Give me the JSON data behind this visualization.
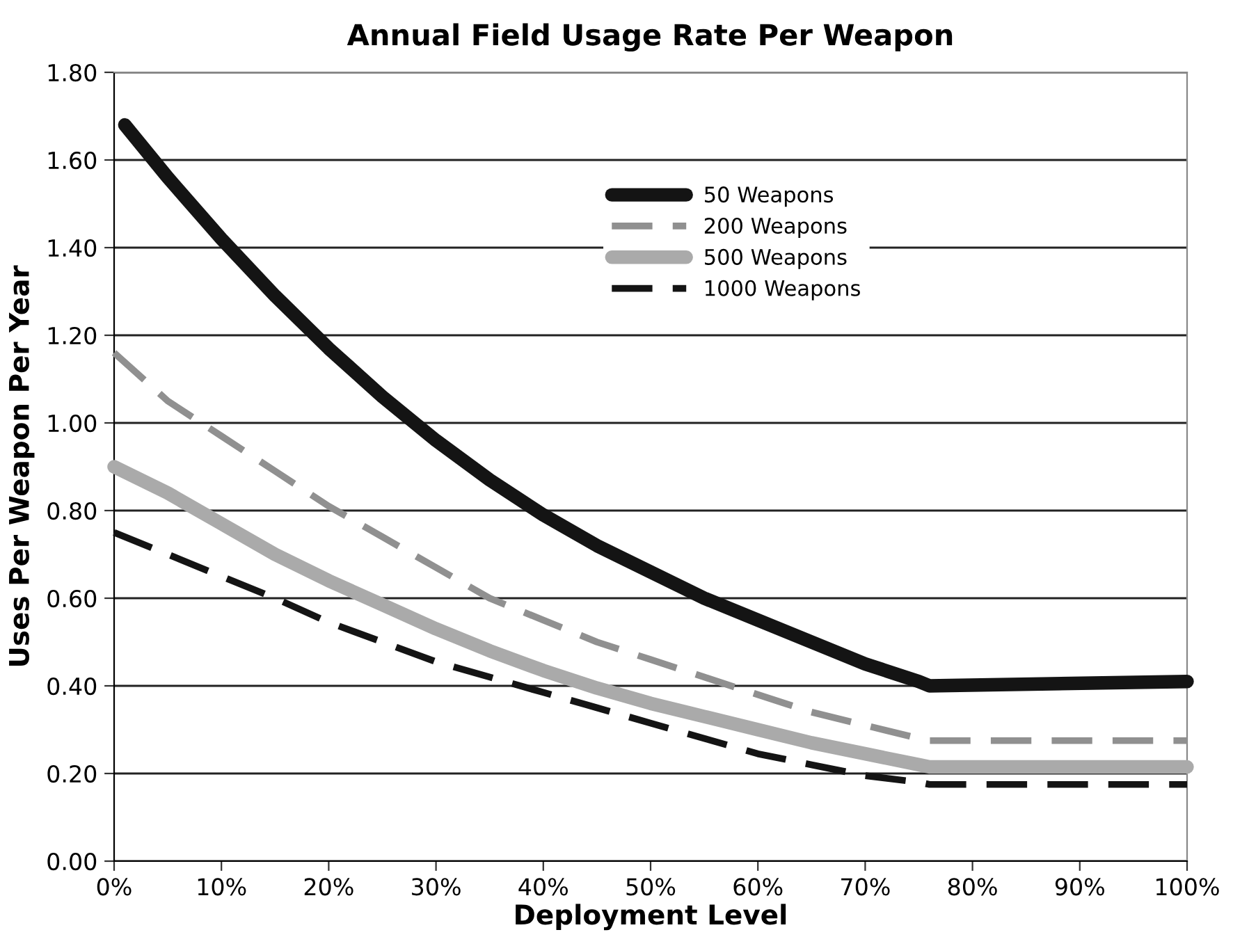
{
  "chart_data": {
    "type": "line",
    "title": "Annual Field Usage Rate Per Weapon",
    "xlabel": "Deployment Level",
    "ylabel": "Uses Per Weapon Per Year",
    "x": [
      1,
      5,
      10,
      15,
      20,
      25,
      30,
      35,
      40,
      45,
      50,
      55,
      60,
      65,
      70,
      75,
      76,
      100
    ],
    "xlim": [
      0,
      100
    ],
    "xticks": [
      {
        "value": 0,
        "label": "0%"
      },
      {
        "value": 10,
        "label": "10%"
      },
      {
        "value": 20,
        "label": "20%"
      },
      {
        "value": 30,
        "label": "30%"
      },
      {
        "value": 40,
        "label": "40%"
      },
      {
        "value": 50,
        "label": "50%"
      },
      {
        "value": 60,
        "label": "60%"
      },
      {
        "value": 70,
        "label": "70%"
      },
      {
        "value": 80,
        "label": "80%"
      },
      {
        "value": 90,
        "label": "90%"
      },
      {
        "value": 100,
        "label": "100%"
      }
    ],
    "ylim": [
      0,
      1.8
    ],
    "yticks": [
      {
        "value": 0,
        "label": "0.00"
      },
      {
        "value": 0.2,
        "label": "0.20"
      },
      {
        "value": 0.4,
        "label": "0.40"
      },
      {
        "value": 0.6,
        "label": "0.60"
      },
      {
        "value": 0.8,
        "label": "0.80"
      },
      {
        "value": 1.0,
        "label": "1.00"
      },
      {
        "value": 1.2,
        "label": "1.20"
      },
      {
        "value": 1.4,
        "label": "1.40"
      },
      {
        "value": 1.6,
        "label": "1.60"
      },
      {
        "value": 1.8,
        "label": "1.80"
      }
    ],
    "grid": "y",
    "legend": "top",
    "marker": "none",
    "series": [
      {
        "name": "50 Weapons",
        "color": "#141414",
        "line_style": "solid",
        "values": [
          1.68,
          1.56,
          1.42,
          1.29,
          1.17,
          1.06,
          0.96,
          0.87,
          0.79,
          0.72,
          0.66,
          0.6,
          0.55,
          0.5,
          0.45,
          0.41,
          0.4,
          0.41
        ]
      },
      {
        "name": "200 Weapons",
        "color": "#909090",
        "line_style": "dashed",
        "x": [
          0,
          5,
          10,
          15,
          20,
          25,
          30,
          35,
          40,
          45,
          50,
          55,
          60,
          65,
          70,
          75,
          76,
          100
        ],
        "values": [
          1.16,
          1.05,
          0.97,
          0.89,
          0.81,
          0.74,
          0.67,
          0.6,
          0.55,
          0.5,
          0.46,
          0.42,
          0.38,
          0.34,
          0.31,
          0.28,
          0.275,
          0.275
        ]
      },
      {
        "name": "500 Weapons",
        "color": "#aaaaaa",
        "line_style": "solid",
        "x": [
          0,
          5,
          10,
          15,
          20,
          25,
          30,
          35,
          40,
          45,
          50,
          55,
          60,
          65,
          70,
          75,
          76,
          100
        ],
        "values": [
          0.9,
          0.84,
          0.77,
          0.7,
          0.64,
          0.585,
          0.53,
          0.48,
          0.435,
          0.395,
          0.36,
          0.33,
          0.3,
          0.27,
          0.245,
          0.22,
          0.215,
          0.215
        ]
      },
      {
        "name": "1000 Weapons",
        "color": "#141414",
        "line_style": "dashed",
        "x": [
          0,
          5,
          10,
          15,
          20,
          25,
          30,
          35,
          40,
          45,
          50,
          55,
          60,
          65,
          70,
          75,
          76,
          100
        ],
        "values": [
          0.75,
          0.7,
          0.65,
          0.6,
          0.545,
          0.5,
          0.455,
          0.42,
          0.385,
          0.35,
          0.315,
          0.28,
          0.245,
          0.22,
          0.195,
          0.18,
          0.175,
          0.175
        ]
      }
    ]
  }
}
